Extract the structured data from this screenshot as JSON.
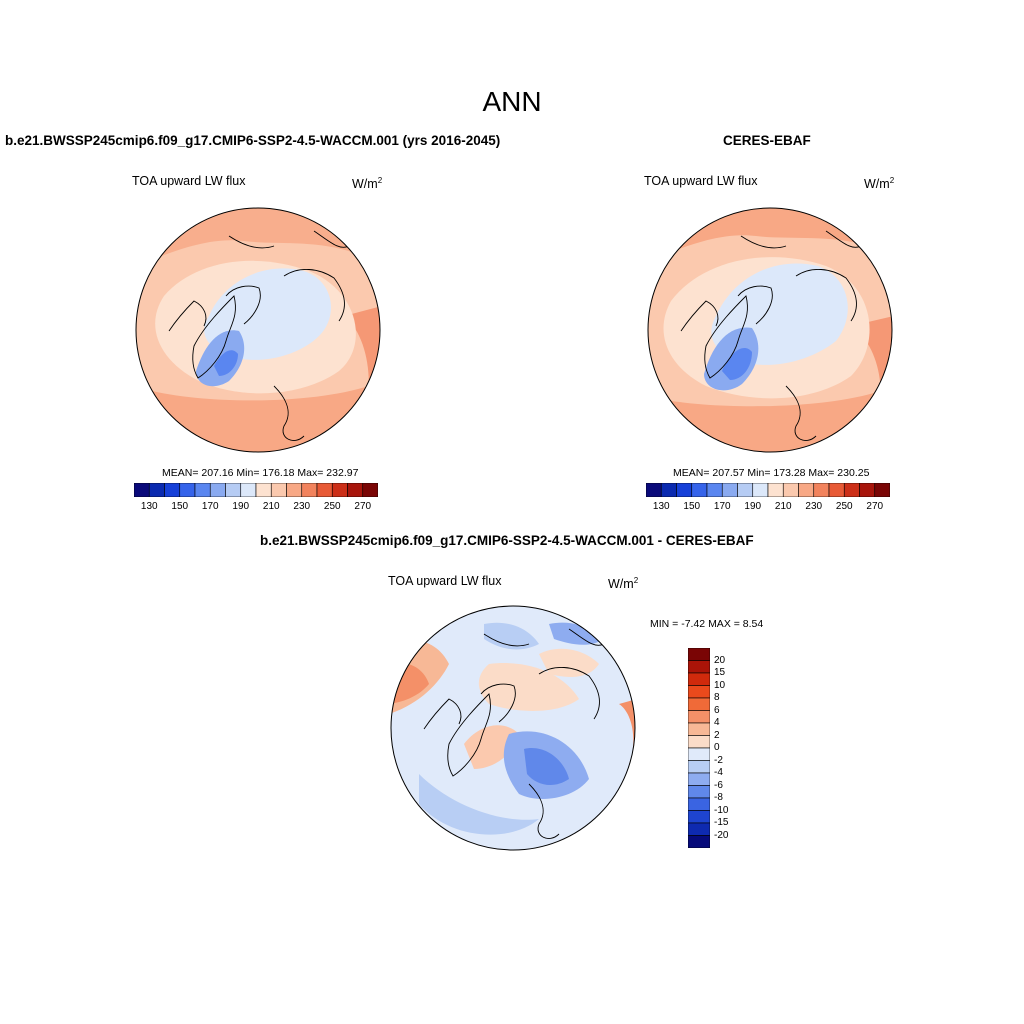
{
  "figure": {
    "title": "ANN"
  },
  "panels": [
    {
      "id": "model",
      "title": "b.e21.BWSSP245cmip6.f09_g17.CMIP6-SSP2-4.5-WACCM.001 (yrs 2016-2045)",
      "variable": "TOA upward LW flux",
      "units": "W/m",
      "units_sup": "2",
      "stats": "MEAN= 207.16  Min= 176.18  Max= 232.97"
    },
    {
      "id": "obs",
      "title": "CERES-EBAF",
      "variable": "TOA upward LW flux",
      "units": "W/m",
      "units_sup": "2",
      "stats": "MEAN= 207.57  Min= 173.28  Max= 230.25"
    },
    {
      "id": "diff",
      "title": "b.e21.BWSSP245cmip6.f09_g17.CMIP6-SSP2-4.5-WACCM.001 - CERES-EBAF",
      "variable": "TOA upward LW flux",
      "units": "W/m",
      "units_sup": "2",
      "stats": "MIN =  -7.42 MAX =   8.54"
    }
  ],
  "colorbars": {
    "abs": {
      "colors": [
        "#0a0a7a",
        "#0a2ab0",
        "#1640d8",
        "#3563ea",
        "#5a86f0",
        "#8aaaf0",
        "#b6ccf4",
        "#dce8fa",
        "#fde2d0",
        "#fbc9ae",
        "#f8a885",
        "#f2835d",
        "#e85a36",
        "#cc2f18",
        "#a8150c",
        "#7a0505"
      ],
      "tick_labels": [
        "130",
        "150",
        "170",
        "190",
        "210",
        "230",
        "250",
        "270"
      ]
    },
    "diff": {
      "colors": [
        "#7a0505",
        "#aa1408",
        "#d02a0c",
        "#ea4a1c",
        "#f06a38",
        "#f49068",
        "#f7b896",
        "#fbdcc8",
        "#e0eafa",
        "#b8cef4",
        "#8eacf0",
        "#6088ea",
        "#3a64e2",
        "#1e44d0",
        "#0e2ab0",
        "#060a7a"
      ],
      "tick_labels": [
        "20",
        "15",
        "10",
        "8",
        "6",
        "4",
        "2",
        "0",
        "-2",
        "-4",
        "-6",
        "-8",
        "-10",
        "-15",
        "-20"
      ]
    }
  }
}
